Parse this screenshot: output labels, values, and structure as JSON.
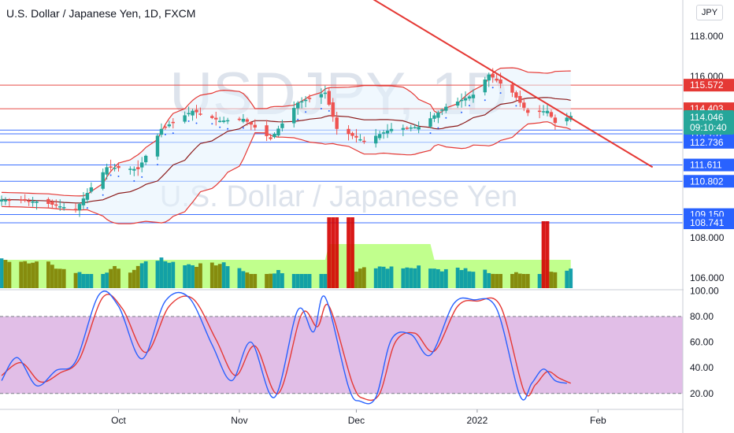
{
  "header": {
    "title": "U.S. Dollar / Japanese Yen, 1D, FXCM",
    "currency_button": "JPY"
  },
  "watermark": {
    "symbol": "USDJPY, 1D",
    "name": "U.S. Dollar / Japanese Yen"
  },
  "price_axis": {
    "ticks": [
      "118.000",
      "116.000",
      "108.000",
      "106.000"
    ],
    "current_price": "114.046",
    "countdown": "09:10:40"
  },
  "levels": [
    {
      "label": "115.572",
      "value": 115.572,
      "color": "#e53935"
    },
    {
      "label": "114.403",
      "value": 114.403,
      "color": "#e53935"
    },
    {
      "label": "113.344",
      "value": 113.344,
      "color": "#2962ff"
    },
    {
      "label": "113.157",
      "value": 113.157,
      "color": "#2962ff"
    },
    {
      "label": "112.736",
      "value": 112.736,
      "color": "#2962ff"
    },
    {
      "label": "111.611",
      "value": 111.611,
      "color": "#2962ff"
    },
    {
      "label": "110.802",
      "value": 110.802,
      "color": "#2962ff"
    },
    {
      "label": "109.150",
      "value": 109.15,
      "color": "#2962ff"
    },
    {
      "label": "108.741",
      "value": 108.741,
      "color": "#2962ff"
    }
  ],
  "osc_axis": {
    "ticks": [
      "100.00",
      "80.00",
      "60.00",
      "40.00",
      "20.00"
    ]
  },
  "time_axis": {
    "ticks": [
      "Oct",
      "Nov",
      "Dec",
      "2022",
      "Feb"
    ]
  },
  "colors": {
    "up_candle": "#26a69a",
    "down_candle": "#ef5350",
    "bollinger": "#e53935",
    "ma": "#8b1a1a",
    "trendline": "#e53935",
    "osc_k": "#2962ff",
    "osc_d": "#e53935",
    "osc_band": "#e1bee7"
  },
  "chart_data": {
    "type": "candlestick",
    "title": "U.S. Dollar / Japanese Yen, 1D, FXCM",
    "x_range": [
      "2021-09-01",
      "2022-01-25"
    ],
    "y_range": [
      105.7,
      118.8
    ],
    "support_resistance": [
      115.572,
      114.403,
      113.344,
      113.157,
      112.736,
      111.611,
      110.802,
      109.15,
      108.741
    ],
    "trendline": [
      {
        "date": "2021-11-21",
        "price": 121.5
      },
      {
        "date": "2022-02-15",
        "price": 111.5
      }
    ],
    "close_path": [
      {
        "date": "2021-09-01",
        "close": 109.9
      },
      {
        "date": "2021-09-10",
        "close": 109.8
      },
      {
        "date": "2021-09-20",
        "close": 109.4
      },
      {
        "date": "2021-09-24",
        "close": 110.5
      },
      {
        "date": "2021-09-28",
        "close": 111.5
      },
      {
        "date": "2021-10-06",
        "close": 111.4
      },
      {
        "date": "2021-10-12",
        "close": 113.4
      },
      {
        "date": "2021-10-20",
        "close": 114.3
      },
      {
        "date": "2021-10-27",
        "close": 113.8
      },
      {
        "date": "2021-11-02",
        "close": 113.9
      },
      {
        "date": "2021-11-09",
        "close": 112.9
      },
      {
        "date": "2021-11-16",
        "close": 114.7
      },
      {
        "date": "2021-11-23",
        "close": 115.2
      },
      {
        "date": "2021-11-26",
        "close": 113.4
      },
      {
        "date": "2021-12-03",
        "close": 112.8
      },
      {
        "date": "2021-12-10",
        "close": 113.4
      },
      {
        "date": "2021-12-17",
        "close": 113.5
      },
      {
        "date": "2021-12-24",
        "close": 114.5
      },
      {
        "date": "2021-12-31",
        "close": 115.1
      },
      {
        "date": "2022-01-04",
        "close": 116.1
      },
      {
        "date": "2022-01-10",
        "close": 115.2
      },
      {
        "date": "2022-01-14",
        "close": 114.2
      },
      {
        "date": "2022-01-19",
        "close": 114.3
      },
      {
        "date": "2022-01-21",
        "close": 113.7
      },
      {
        "date": "2022-01-25",
        "close": 114.046
      }
    ],
    "oscillator": {
      "y_range": [
        10,
        100
      ],
      "bands": [
        20,
        80
      ],
      "k": [
        {
          "date": "2021-09-01",
          "v": 30
        },
        {
          "date": "2021-09-05",
          "v": 48
        },
        {
          "date": "2021-09-10",
          "v": 26
        },
        {
          "date": "2021-09-15",
          "v": 38
        },
        {
          "date": "2021-09-20",
          "v": 45
        },
        {
          "date": "2021-09-26",
          "v": 97
        },
        {
          "date": "2021-10-01",
          "v": 88
        },
        {
          "date": "2021-10-07",
          "v": 47
        },
        {
          "date": "2021-10-13",
          "v": 92
        },
        {
          "date": "2021-10-19",
          "v": 95
        },
        {
          "date": "2021-10-25",
          "v": 58
        },
        {
          "date": "2021-10-30",
          "v": 30
        },
        {
          "date": "2021-11-04",
          "v": 60
        },
        {
          "date": "2021-11-10",
          "v": 17
        },
        {
          "date": "2021-11-16",
          "v": 85
        },
        {
          "date": "2021-11-20",
          "v": 68
        },
        {
          "date": "2021-11-23",
          "v": 95
        },
        {
          "date": "2021-11-29",
          "v": 25
        },
        {
          "date": "2021-12-02",
          "v": 14
        },
        {
          "date": "2021-12-06",
          "v": 17
        },
        {
          "date": "2021-12-10",
          "v": 62
        },
        {
          "date": "2021-12-15",
          "v": 66
        },
        {
          "date": "2021-12-20",
          "v": 50
        },
        {
          "date": "2021-12-26",
          "v": 90
        },
        {
          "date": "2021-12-31",
          "v": 93
        },
        {
          "date": "2022-01-06",
          "v": 86
        },
        {
          "date": "2022-01-12",
          "v": 18
        },
        {
          "date": "2022-01-15",
          "v": 28
        },
        {
          "date": "2022-01-18",
          "v": 39
        },
        {
          "date": "2022-01-21",
          "v": 30
        },
        {
          "date": "2022-01-24",
          "v": 28
        }
      ],
      "d": [
        {
          "date": "2021-09-01",
          "v": 34
        },
        {
          "date": "2021-09-06",
          "v": 44
        },
        {
          "date": "2021-09-11",
          "v": 29
        },
        {
          "date": "2021-09-16",
          "v": 36
        },
        {
          "date": "2021-09-21",
          "v": 47
        },
        {
          "date": "2021-09-27",
          "v": 95
        },
        {
          "date": "2021-10-02",
          "v": 86
        },
        {
          "date": "2021-10-08",
          "v": 52
        },
        {
          "date": "2021-10-14",
          "v": 88
        },
        {
          "date": "2021-10-20",
          "v": 94
        },
        {
          "date": "2021-10-26",
          "v": 62
        },
        {
          "date": "2021-10-31",
          "v": 34
        },
        {
          "date": "2021-11-05",
          "v": 57
        },
        {
          "date": "2021-11-11",
          "v": 20
        },
        {
          "date": "2021-11-17",
          "v": 82
        },
        {
          "date": "2021-11-21",
          "v": 72
        },
        {
          "date": "2021-11-24",
          "v": 88
        },
        {
          "date": "2021-11-30",
          "v": 28
        },
        {
          "date": "2021-12-03",
          "v": 16
        },
        {
          "date": "2021-12-07",
          "v": 20
        },
        {
          "date": "2021-12-11",
          "v": 60
        },
        {
          "date": "2021-12-16",
          "v": 67
        },
        {
          "date": "2021-12-21",
          "v": 53
        },
        {
          "date": "2021-12-27",
          "v": 88
        },
        {
          "date": "2022-01-01",
          "v": 92
        },
        {
          "date": "2022-01-07",
          "v": 88
        },
        {
          "date": "2022-01-13",
          "v": 22
        },
        {
          "date": "2022-01-16",
          "v": 27
        },
        {
          "date": "2022-01-19",
          "v": 37
        },
        {
          "date": "2022-01-22",
          "v": 32
        },
        {
          "date": "2022-01-25",
          "v": 28
        }
      ]
    }
  }
}
